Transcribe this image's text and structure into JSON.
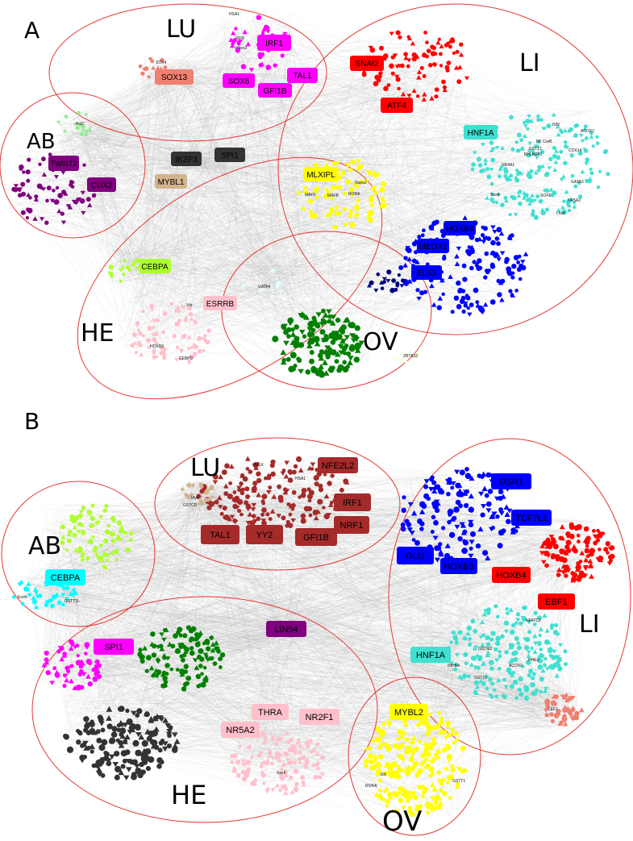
{
  "panels": [
    {
      "letter": "A",
      "regions": [
        {
          "key": "LU",
          "label": "LU"
        },
        {
          "key": "LI",
          "label": "LI"
        },
        {
          "key": "AB",
          "label": "AB"
        },
        {
          "key": "HE",
          "label": "HE"
        },
        {
          "key": "OV",
          "label": "OV"
        }
      ],
      "tfs": [
        {
          "key": "IRF1",
          "label": "IRF1",
          "color": "#ff00ff"
        },
        {
          "key": "SOX13",
          "label": "SOX13",
          "color": "#f08070"
        },
        {
          "key": "SOX6",
          "label": "SOX6",
          "color": "#ff00ff"
        },
        {
          "key": "TAL1",
          "label": "TAL1",
          "color": "#ff00ff"
        },
        {
          "key": "GFI1B",
          "label": "GFI1B",
          "color": "#ff00ff"
        },
        {
          "key": "SNAI2",
          "label": "SNAI2",
          "color": "#ff0000"
        },
        {
          "key": "ATF4",
          "label": "ATF4",
          "color": "#ff0000"
        },
        {
          "key": "HNF1A",
          "label": "HNF1A",
          "color": "#40e0d0"
        },
        {
          "key": "TWIST2",
          "label": "TWIST2",
          "color": "#800080"
        },
        {
          "key": "CUX2",
          "label": "CUX2",
          "color": "#800080"
        },
        {
          "key": "IKZF3",
          "label": "IKZF3",
          "color": "#333333"
        },
        {
          "key": "SPI1",
          "label": "SPI1",
          "color": "#333333"
        },
        {
          "key": "MYBL1",
          "label": "MYBL1",
          "color": "#d2b48c"
        },
        {
          "key": "MLXIPL",
          "label": "MLXIPL",
          "color": "#ffff00"
        },
        {
          "key": "HOXB4",
          "label": "HOXB4",
          "color": "#0000ff"
        },
        {
          "key": "MEOX2",
          "label": "MEOX2",
          "color": "#0000ff"
        },
        {
          "key": "ELK3",
          "label": "ELK3",
          "color": "#0000ff"
        },
        {
          "key": "CEBPA",
          "label": "CEBPA",
          "color": "#adff2f"
        },
        {
          "key": "ESRRB",
          "label": "ESRRB",
          "color": "#ffc0cb"
        }
      ],
      "small_labels": [
        {
          "key": "hsa1",
          "label": "HSA1"
        },
        {
          "key": "irf8a",
          "label": "IRF8"
        },
        {
          "key": "irf8b",
          "label": "Hhex2"
        },
        {
          "key": "sox4",
          "label": "SOX4"
        },
        {
          "key": "ast2",
          "label": "Ast2"
        },
        {
          "key": "jun",
          "label": "JUN"
        },
        {
          "key": "acox2",
          "label": "ACOX2"
        },
        {
          "key": "nf",
          "label": "NF  CreB"
        },
        {
          "key": "gstz1",
          "label": "GSTZ1"
        },
        {
          "key": "bhlhe41",
          "label": "BHLHE41"
        },
        {
          "key": "cox14",
          "label": "COX14"
        },
        {
          "key": "nr4a1",
          "label": "NR4A1"
        },
        {
          "key": "gata3",
          "label": "GATA3"
        },
        {
          "key": "sox9",
          "label": "Sox9"
        },
        {
          "key": "sox6b",
          "label": "SOX6"
        },
        {
          "key": "mafb",
          "label": "MAFB"
        },
        {
          "key": "rora",
          "label": "RORA"
        },
        {
          "key": "nupa2",
          "label": "Nupa2"
        },
        {
          "key": "mafbb",
          "label": "MAFF"
        },
        {
          "key": "gata4",
          "label": "GATA4"
        },
        {
          "key": "vdr",
          "label": "Vdr"
        },
        {
          "key": "hoxb3",
          "label": "HOXB3"
        },
        {
          "key": "cebpd",
          "label": "CEBPD"
        },
        {
          "key": "zbtb32",
          "label": "ZBTB32"
        },
        {
          "key": "lhx6",
          "label": "Lhx6"
        },
        {
          "key": "hnf4",
          "label": "NR5A2"
        }
      ]
    },
    {
      "letter": "B",
      "regions": [
        {
          "key": "LU",
          "label": "LU"
        },
        {
          "key": "LI",
          "label": "LI"
        },
        {
          "key": "AB",
          "label": "AB"
        },
        {
          "key": "HE",
          "label": "HE"
        },
        {
          "key": "OV",
          "label": "OV"
        }
      ],
      "tfs": [
        {
          "key": "NFE2L2",
          "label": "NFE2L2",
          "color": "#a52a2a"
        },
        {
          "key": "IRF1",
          "label": "IRF1",
          "color": "#a52a2a"
        },
        {
          "key": "NRF1",
          "label": "NRF1",
          "color": "#a52a2a"
        },
        {
          "key": "GFI1B",
          "label": "GFI1B",
          "color": "#a52a2a"
        },
        {
          "key": "TAL1",
          "label": "TAL1",
          "color": "#a52a2a"
        },
        {
          "key": "YY2",
          "label": "YY2",
          "color": "#a52a2a"
        },
        {
          "key": "OSR1",
          "label": "OSR1",
          "color": "#0000ff"
        },
        {
          "key": "TCF7L1",
          "label": "TCF7L1",
          "color": "#0000ff"
        },
        {
          "key": "GLI2",
          "label": "GLI2",
          "color": "#0000ff"
        },
        {
          "key": "HOXB3",
          "label": "HOXB3",
          "color": "#0000ff"
        },
        {
          "key": "HOXB4",
          "label": "HOXB4",
          "color": "#ff0000"
        },
        {
          "key": "EBF1",
          "label": "EBF1",
          "color": "#ff0000"
        },
        {
          "key": "HNF1A",
          "label": "HNF1A",
          "color": "#40e0d0"
        },
        {
          "key": "CEBPA",
          "label": "CEBPA",
          "color": "#00ffff"
        },
        {
          "key": "SPI1",
          "label": "SPI1",
          "color": "#ff00ff"
        },
        {
          "key": "LIN54",
          "label": "LIN54",
          "color": "#800080"
        },
        {
          "key": "THRA",
          "label": "THRA",
          "color": "#ffc0cb"
        },
        {
          "key": "NR2F1",
          "label": "NR2F1",
          "color": "#ffc0cb"
        },
        {
          "key": "NR5A2",
          "label": "NR5A2",
          "color": "#ffc0cb"
        },
        {
          "key": "MYBL2",
          "label": "MYBL2",
          "color": "#ffff00"
        }
      ],
      "small_labels": [
        {
          "key": "myb",
          "label": "Myb"
        },
        {
          "key": "gstcd",
          "label": "GSTCD"
        },
        {
          "key": "hhex",
          "label": "HHEX"
        },
        {
          "key": "hsa1b",
          "label": "HSA1"
        },
        {
          "key": "nfatc2",
          "label": "NFATC2"
        },
        {
          "key": "gstm2",
          "label": "GSTM2"
        },
        {
          "key": "inhba",
          "label": "INHBA"
        },
        {
          "key": "acox2b",
          "label": "ACOX2"
        },
        {
          "key": "hhexb",
          "label": "HHEX"
        },
        {
          "key": "gstz1b",
          "label": "GSTZ1"
        },
        {
          "key": "lef1",
          "label": "LEF1"
        },
        {
          "key": "esrrb",
          "label": "Esrrb"
        },
        {
          "key": "gstt1b",
          "label": "GSTT1L"
        },
        {
          "key": "sox5",
          "label": "Sox5"
        },
        {
          "key": "rora2",
          "label": "RORA"
        },
        {
          "key": "gstt1",
          "label": "GSTT1"
        },
        {
          "key": "elk",
          "label": "Elk"
        }
      ]
    }
  ]
}
